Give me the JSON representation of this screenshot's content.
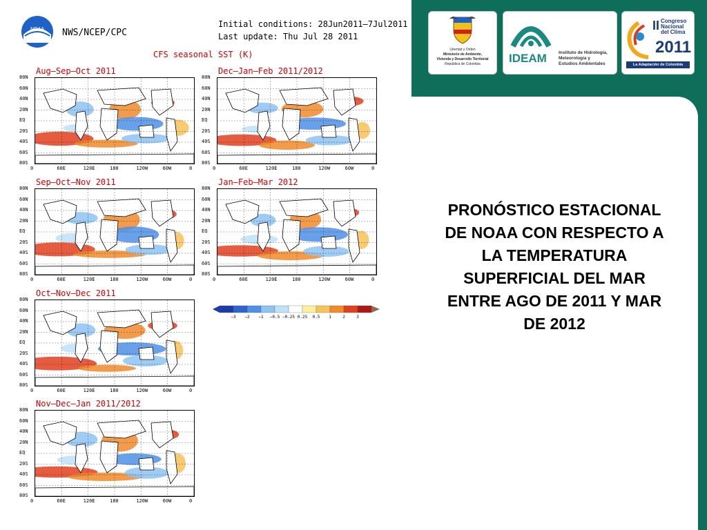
{
  "header": {
    "agency": "NWS/NCEP/CPC",
    "noaa_logo_text": "NOAA",
    "initial_conditions": "Initial conditions: 28Jun2011–7Jul2011",
    "last_update": "Last update: Thu Jul 28 2011",
    "product_title": "CFS seasonal SST (K)"
  },
  "panels": [
    {
      "title": "Aug–Sep–Oct 2011"
    },
    {
      "title": "Dec–Jan–Feb 2011/2012"
    },
    {
      "title": "Sep–Oct–Nov 2011"
    },
    {
      "title": "Jan–Feb–Mar 2012"
    },
    {
      "title": "Oct–Nov–Dec 2011"
    },
    {
      "title": "Nov–Dec–Jan 2011/2012"
    }
  ],
  "lat_labels": [
    "80N",
    "60N",
    "40N",
    "20N",
    "EQ",
    "20S",
    "40S",
    "60S",
    "80S"
  ],
  "lon_labels": [
    "0",
    "60E",
    "120E",
    "180",
    "120W",
    "60W",
    "0"
  ],
  "colorbar": {
    "labels": [
      "−3",
      "−2",
      "−1",
      "−0.5",
      "−0.25",
      "0.25",
      "0.5",
      "1",
      "2",
      "3"
    ],
    "colors": [
      "#1e3ca8",
      "#2e64d2",
      "#4f8fe6",
      "#8ec3f2",
      "#bfe2f8",
      "#ffffff",
      "#fff0a0",
      "#f7c25a",
      "#f08a2a",
      "#e0401e",
      "#b01818"
    ]
  },
  "logos": {
    "ministerio": {
      "line1": "Libertad y Orden",
      "line2": "Ministerio de Ambiente,",
      "line3": "Vivienda y Desarrollo Territorial",
      "line4": "República de Colombia"
    },
    "ideam": {
      "name": "IDEAM",
      "line1": "Instituto de Hidrología,",
      "line2": "Meteorología y",
      "line3": "Estudios Ambientales"
    },
    "congreso": {
      "roman": "II",
      "line1": "Congreso",
      "line2": "Nacional",
      "line3": "del Clima",
      "year": "2011",
      "tagline": "La Adaptación de Colombia"
    }
  },
  "description": "PRONÓSTICO ESTACIONAL DE NOAA CON RESPECTO A LA TEMPERATURA SUPERFICIAL DEL MAR ENTRE AGO DE 2011 Y MAR DE 2012"
}
